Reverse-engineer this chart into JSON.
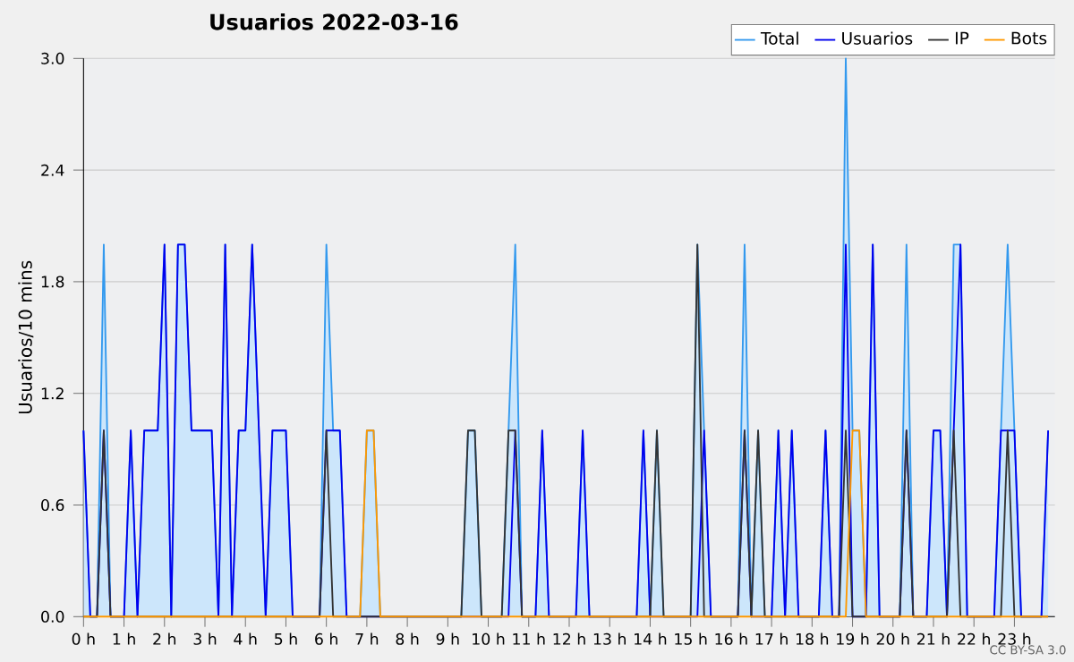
{
  "chart_data": {
    "type": "line",
    "title": "Usuarios  2022-03-16",
    "ylabel": "Usuarios/10 mins",
    "annotations": [
      "CC BY-SA 3.0"
    ],
    "x": [
      0,
      0.167,
      0.333,
      0.5,
      0.667,
      0.833,
      1,
      1.167,
      1.333,
      1.5,
      1.667,
      1.833,
      2,
      2.167,
      2.333,
      2.5,
      2.667,
      2.833,
      3,
      3.167,
      3.333,
      3.5,
      3.667,
      3.833,
      4,
      4.167,
      4.333,
      4.5,
      4.667,
      4.833,
      5,
      5.167,
      5.333,
      5.5,
      5.667,
      5.833,
      6,
      6.167,
      6.333,
      6.5,
      6.667,
      6.833,
      7,
      7.167,
      7.333,
      7.5,
      7.667,
      7.833,
      8,
      8.167,
      8.333,
      8.5,
      8.667,
      8.833,
      9,
      9.167,
      9.333,
      9.5,
      9.667,
      9.833,
      10,
      10.167,
      10.333,
      10.5,
      10.667,
      10.833,
      11,
      11.167,
      11.333,
      11.5,
      11.667,
      11.833,
      12,
      12.167,
      12.333,
      12.5,
      12.667,
      12.833,
      13,
      13.167,
      13.333,
      13.5,
      13.667,
      13.833,
      14,
      14.167,
      14.333,
      14.5,
      14.667,
      14.833,
      15,
      15.167,
      15.333,
      15.5,
      15.667,
      15.833,
      16,
      16.167,
      16.333,
      16.5,
      16.667,
      16.833,
      17,
      17.167,
      17.333,
      17.5,
      17.667,
      17.833,
      18,
      18.167,
      18.333,
      18.5,
      18.667,
      18.833,
      19,
      19.167,
      19.333,
      19.5,
      19.667,
      19.833,
      20,
      20.167,
      20.333,
      20.5,
      20.667,
      20.833,
      21,
      21.167,
      21.333,
      21.5,
      21.667,
      21.833,
      22,
      22.167,
      22.333,
      22.5,
      22.667,
      22.833,
      23,
      23.167,
      23.333,
      23.5,
      23.667,
      23.833
    ],
    "series": [
      {
        "name": "Total",
        "type": "area",
        "color": "#3399ee",
        "values": [
          1,
          0,
          0,
          2,
          0,
          0,
          0,
          1,
          0,
          1,
          1,
          1,
          2,
          0,
          2,
          2,
          1,
          1,
          1,
          1,
          0,
          2,
          0,
          1,
          1,
          2,
          1,
          0,
          1,
          1,
          1,
          0,
          0,
          0,
          0,
          0,
          2,
          1,
          1,
          0,
          0,
          0,
          1,
          1,
          0,
          0,
          0,
          0,
          0,
          0,
          0,
          0,
          0,
          0,
          0,
          0,
          0,
          1,
          1,
          0,
          0,
          0,
          0,
          1,
          2,
          0,
          0,
          0,
          1,
          0,
          0,
          0,
          0,
          0,
          1,
          0,
          0,
          0,
          0,
          0,
          0,
          0,
          0,
          1,
          0,
          1,
          0,
          0,
          0,
          0,
          0,
          2,
          1,
          0,
          0,
          0,
          0,
          0,
          2,
          0,
          1,
          0,
          0,
          1,
          0,
          1,
          0,
          0,
          0,
          0,
          1,
          0,
          0,
          3,
          1,
          1,
          0,
          2,
          0,
          0,
          0,
          0,
          2,
          0,
          0,
          0,
          1,
          1,
          0,
          2,
          2,
          0,
          0,
          0,
          0,
          0,
          1,
          2,
          1,
          0,
          0,
          0,
          0,
          1
        ]
      },
      {
        "name": "Usuarios",
        "color": "#0000ee",
        "values": [
          1,
          0,
          0,
          1,
          0,
          0,
          0,
          1,
          0,
          1,
          1,
          1,
          2,
          0,
          2,
          2,
          1,
          1,
          1,
          1,
          0,
          2,
          0,
          1,
          1,
          2,
          1,
          0,
          1,
          1,
          1,
          0,
          0,
          0,
          0,
          0,
          1,
          1,
          1,
          0,
          0,
          0,
          0,
          0,
          0,
          0,
          0,
          0,
          0,
          0,
          0,
          0,
          0,
          0,
          0,
          0,
          0,
          0,
          0,
          0,
          0,
          0,
          0,
          0,
          1,
          0,
          0,
          0,
          1,
          0,
          0,
          0,
          0,
          0,
          1,
          0,
          0,
          0,
          0,
          0,
          0,
          0,
          0,
          1,
          0,
          0,
          0,
          0,
          0,
          0,
          0,
          0,
          1,
          0,
          0,
          0,
          0,
          0,
          1,
          0,
          0,
          0,
          0,
          1,
          0,
          1,
          0,
          0,
          0,
          0,
          1,
          0,
          0,
          2,
          0,
          0,
          0,
          2,
          0,
          0,
          0,
          0,
          1,
          0,
          0,
          0,
          1,
          1,
          0,
          1,
          2,
          0,
          0,
          0,
          0,
          0,
          1,
          1,
          1,
          0,
          0,
          0,
          0,
          1
        ]
      },
      {
        "name": "IP",
        "color": "#333333",
        "values": [
          0,
          0,
          0,
          1,
          0,
          0,
          0,
          0,
          0,
          0,
          0,
          0,
          0,
          0,
          0,
          0,
          0,
          0,
          0,
          0,
          0,
          0,
          0,
          0,
          0,
          0,
          0,
          0,
          0,
          0,
          0,
          0,
          0,
          0,
          0,
          0,
          1,
          0,
          0,
          0,
          0,
          0,
          0,
          0,
          0,
          0,
          0,
          0,
          0,
          0,
          0,
          0,
          0,
          0,
          0,
          0,
          0,
          1,
          1,
          0,
          0,
          0,
          0,
          1,
          1,
          0,
          0,
          0,
          0,
          0,
          0,
          0,
          0,
          0,
          0,
          0,
          0,
          0,
          0,
          0,
          0,
          0,
          0,
          0,
          0,
          1,
          0,
          0,
          0,
          0,
          0,
          2,
          0,
          0,
          0,
          0,
          0,
          0,
          1,
          0,
          1,
          0,
          0,
          0,
          0,
          0,
          0,
          0,
          0,
          0,
          0,
          0,
          0,
          1,
          0,
          0,
          0,
          0,
          0,
          0,
          0,
          0,
          1,
          0,
          0,
          0,
          0,
          0,
          0,
          1,
          0,
          0,
          0,
          0,
          0,
          0,
          0,
          1,
          0,
          0,
          0,
          0,
          0,
          0
        ]
      },
      {
        "name": "Bots",
        "color": "#ff9900",
        "values": [
          0,
          0,
          0,
          0,
          0,
          0,
          0,
          0,
          0,
          0,
          0,
          0,
          0,
          0,
          0,
          0,
          0,
          0,
          0,
          0,
          0,
          0,
          0,
          0,
          0,
          0,
          0,
          0,
          0,
          0,
          0,
          0,
          0,
          0,
          0,
          0,
          0,
          0,
          0,
          0,
          0,
          0,
          1,
          1,
          0,
          0,
          0,
          0,
          0,
          0,
          0,
          0,
          0,
          0,
          0,
          0,
          0,
          0,
          0,
          0,
          0,
          0,
          0,
          0,
          0,
          0,
          0,
          0,
          0,
          0,
          0,
          0,
          0,
          0,
          0,
          0,
          0,
          0,
          0,
          0,
          0,
          0,
          0,
          0,
          0,
          0,
          0,
          0,
          0,
          0,
          0,
          0,
          0,
          0,
          0,
          0,
          0,
          0,
          0,
          0,
          0,
          0,
          0,
          0,
          0,
          0,
          0,
          0,
          0,
          0,
          0,
          0,
          0,
          0,
          1,
          1,
          0,
          0,
          0,
          0,
          0,
          0,
          0,
          0,
          0,
          0,
          0,
          0,
          0,
          0,
          0,
          0,
          0,
          0,
          0,
          0,
          0,
          0,
          0,
          0,
          0,
          0,
          0,
          0
        ]
      }
    ],
    "xlim": [
      0,
      24
    ],
    "xticks": [
      {
        "value": 0,
        "label": "0 h"
      },
      {
        "value": 1,
        "label": "1 h"
      },
      {
        "value": 2,
        "label": "2 h"
      },
      {
        "value": 3,
        "label": "3 h"
      },
      {
        "value": 4,
        "label": "4 h"
      },
      {
        "value": 5,
        "label": "5 h"
      },
      {
        "value": 6,
        "label": "6 h"
      },
      {
        "value": 7,
        "label": "7 h"
      },
      {
        "value": 8,
        "label": "8 h"
      },
      {
        "value": 9,
        "label": "9 h"
      },
      {
        "value": 10,
        "label": "10 h"
      },
      {
        "value": 11,
        "label": "11 h"
      },
      {
        "value": 12,
        "label": "12 h"
      },
      {
        "value": 13,
        "label": "13 h"
      },
      {
        "value": 14,
        "label": "14 h"
      },
      {
        "value": 15,
        "label": "15 h"
      },
      {
        "value": 16,
        "label": "16 h"
      },
      {
        "value": 17,
        "label": "17 h"
      },
      {
        "value": 18,
        "label": "18 h"
      },
      {
        "value": 19,
        "label": "19 h"
      },
      {
        "value": 20,
        "label": "20 h"
      },
      {
        "value": 21,
        "label": "21 h"
      },
      {
        "value": 22,
        "label": "22 h"
      },
      {
        "value": 23,
        "label": "23 h"
      }
    ],
    "ylim": [
      0,
      3
    ],
    "yticks": [
      {
        "value": 0,
        "label": "0.0"
      },
      {
        "value": 0.6,
        "label": "0.6"
      },
      {
        "value": 1.2,
        "label": "1.2"
      },
      {
        "value": 1.8,
        "label": "1.8"
      },
      {
        "value": 2.4,
        "label": "2.4"
      },
      {
        "value": 3,
        "label": "3.0"
      }
    ],
    "grid": "y",
    "legend": "top right",
    "marker": "none",
    "line_style": "solid"
  }
}
